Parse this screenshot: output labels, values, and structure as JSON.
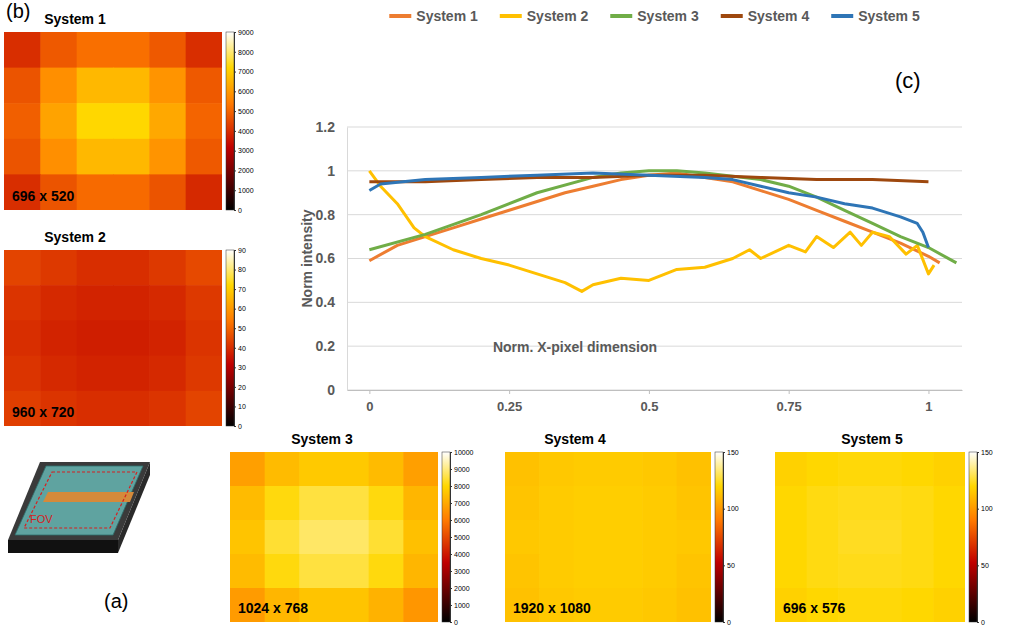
{
  "panel_labels": [
    "(a)",
    "(b)",
    "(c)"
  ],
  "diagram_label": "FOV",
  "chart_data": [
    {
      "type": "line",
      "legend": "top",
      "grid": true,
      "x_label": "Norm. X-pixel dimension",
      "y_label": "Norm intensity",
      "xlim": [
        -0.04,
        1.06
      ],
      "xticks": [
        0,
        0.25,
        0.5,
        0.75,
        1
      ],
      "ylim": [
        0,
        1.2
      ],
      "yticks": [
        0,
        0.2,
        0.4,
        0.6,
        0.8,
        1,
        1.2
      ],
      "series": [
        {
          "name": "System 1",
          "color": "#ED7D31",
          "x": [
            0,
            0.05,
            0.1,
            0.15,
            0.2,
            0.25,
            0.3,
            0.35,
            0.4,
            0.45,
            0.5,
            0.55,
            0.6,
            0.65,
            0.7,
            0.75,
            0.8,
            0.85,
            0.9,
            0.95,
            1,
            1.02
          ],
          "values": [
            0.59,
            0.66,
            0.7,
            0.74,
            0.78,
            0.82,
            0.86,
            0.9,
            0.93,
            0.96,
            0.98,
            0.99,
            0.97,
            0.95,
            0.91,
            0.87,
            0.82,
            0.77,
            0.72,
            0.67,
            0.61,
            0.58
          ]
        },
        {
          "name": "System 2",
          "color": "#FFC000",
          "x": [
            0,
            0.02,
            0.05,
            0.08,
            0.1,
            0.15,
            0.2,
            0.25,
            0.3,
            0.35,
            0.38,
            0.4,
            0.45,
            0.5,
            0.55,
            0.6,
            0.65,
            0.68,
            0.7,
            0.75,
            0.78,
            0.8,
            0.83,
            0.86,
            0.88,
            0.9,
            0.93,
            0.96,
            0.98,
            1,
            1.01
          ],
          "values": [
            1,
            0.93,
            0.85,
            0.74,
            0.7,
            0.64,
            0.6,
            0.57,
            0.53,
            0.49,
            0.45,
            0.48,
            0.51,
            0.5,
            0.55,
            0.56,
            0.6,
            0.64,
            0.6,
            0.66,
            0.63,
            0.7,
            0.65,
            0.72,
            0.66,
            0.72,
            0.7,
            0.62,
            0.66,
            0.53,
            0.57
          ]
        },
        {
          "name": "System 3",
          "color": "#70AD47",
          "x": [
            0,
            0.1,
            0.2,
            0.3,
            0.4,
            0.45,
            0.5,
            0.55,
            0.6,
            0.7,
            0.75,
            0.8,
            0.85,
            0.9,
            0.95,
            1,
            1.05
          ],
          "values": [
            0.64,
            0.71,
            0.8,
            0.9,
            0.97,
            0.99,
            1,
            1,
            0.99,
            0.96,
            0.93,
            0.88,
            0.82,
            0.76,
            0.7,
            0.65,
            0.58
          ]
        },
        {
          "name": "System 4",
          "color": "#9E480E",
          "x": [
            0,
            0.1,
            0.2,
            0.3,
            0.4,
            0.5,
            0.6,
            0.7,
            0.8,
            0.9,
            1
          ],
          "values": [
            0.95,
            0.95,
            0.96,
            0.97,
            0.97,
            0.98,
            0.98,
            0.97,
            0.96,
            0.96,
            0.95
          ]
        },
        {
          "name": "System 5",
          "color": "#2E75B6",
          "x": [
            0,
            0.02,
            0.1,
            0.2,
            0.3,
            0.4,
            0.5,
            0.6,
            0.65,
            0.7,
            0.75,
            0.8,
            0.85,
            0.9,
            0.95,
            0.98,
            0.99,
            1
          ],
          "values": [
            0.91,
            0.94,
            0.96,
            0.97,
            0.98,
            0.99,
            0.98,
            0.97,
            0.96,
            0.93,
            0.9,
            0.88,
            0.85,
            0.83,
            0.79,
            0.76,
            0.72,
            0.65
          ]
        }
      ]
    },
    {
      "type": "heatmap",
      "title": "System 1",
      "annotation": "696 x 520",
      "cells": [
        [
          4000,
          4800,
          5200,
          5200,
          4800,
          4000
        ],
        [
          4700,
          5800,
          6600,
          6600,
          5900,
          4800
        ],
        [
          4900,
          6200,
          7200,
          7200,
          6300,
          5000
        ],
        [
          4700,
          5800,
          6600,
          6600,
          5900,
          4800
        ],
        [
          4000,
          4700,
          5100,
          5100,
          4700,
          3900
        ]
      ],
      "color_range": [
        0,
        9000
      ],
      "color_ticks": [
        0,
        1000,
        2000,
        3000,
        4000,
        5000,
        6000,
        7000,
        8000,
        9000
      ]
    },
    {
      "type": "heatmap",
      "title": "System 2",
      "annotation": "960 x 720",
      "cells": [
        [
          44,
          42,
          40,
          40,
          42,
          45
        ],
        [
          41,
          39,
          38,
          38,
          39,
          42
        ],
        [
          40,
          38,
          37,
          37,
          38,
          41
        ],
        [
          41,
          39,
          38,
          38,
          39,
          42
        ],
        [
          43,
          41,
          40,
          40,
          41,
          44
        ]
      ],
      "color_range": [
        0,
        90
      ],
      "color_ticks": [
        0,
        10,
        20,
        30,
        40,
        50,
        60,
        70,
        80,
        90
      ]
    },
    {
      "type": "heatmap",
      "title": "System 3",
      "annotation": "1024 x 768",
      "cells": [
        [
          6800,
          7400,
          7700,
          7700,
          7400,
          6800
        ],
        [
          7400,
          8100,
          8500,
          8500,
          8100,
          7300
        ],
        [
          7600,
          8400,
          8800,
          8800,
          8400,
          7500
        ],
        [
          7400,
          8100,
          8500,
          8500,
          8100,
          7300
        ],
        [
          6700,
          7300,
          7600,
          7600,
          7200,
          6600
        ]
      ],
      "color_range": [
        0,
        10000
      ],
      "color_ticks": [
        0,
        1000,
        2000,
        3000,
        4000,
        5000,
        6000,
        7000,
        8000,
        9000,
        10000
      ]
    },
    {
      "type": "heatmap",
      "title": "System 4",
      "annotation": "1920 x 1080",
      "cells": [
        [
          113,
          115,
          116,
          116,
          115,
          113
        ],
        [
          114,
          116,
          117,
          117,
          116,
          114
        ],
        [
          115,
          116,
          117,
          117,
          116,
          115
        ],
        [
          114,
          116,
          117,
          117,
          116,
          114
        ],
        [
          113,
          115,
          116,
          116,
          115,
          113
        ]
      ],
      "color_range": [
        0,
        150
      ],
      "color_ticks": [
        0,
        50,
        100,
        150
      ]
    },
    {
      "type": "heatmap",
      "title": "System 5",
      "annotation": "696 x 576",
      "cells": [
        [
          118,
          120,
          121,
          121,
          120,
          118
        ],
        [
          120,
          122,
          123,
          123,
          122,
          120
        ],
        [
          120,
          122,
          124,
          124,
          122,
          120
        ],
        [
          120,
          122,
          123,
          123,
          122,
          120
        ],
        [
          118,
          120,
          121,
          121,
          120,
          118
        ]
      ],
      "color_range": [
        0,
        150
      ],
      "color_ticks": [
        0,
        50,
        100,
        150
      ]
    }
  ]
}
